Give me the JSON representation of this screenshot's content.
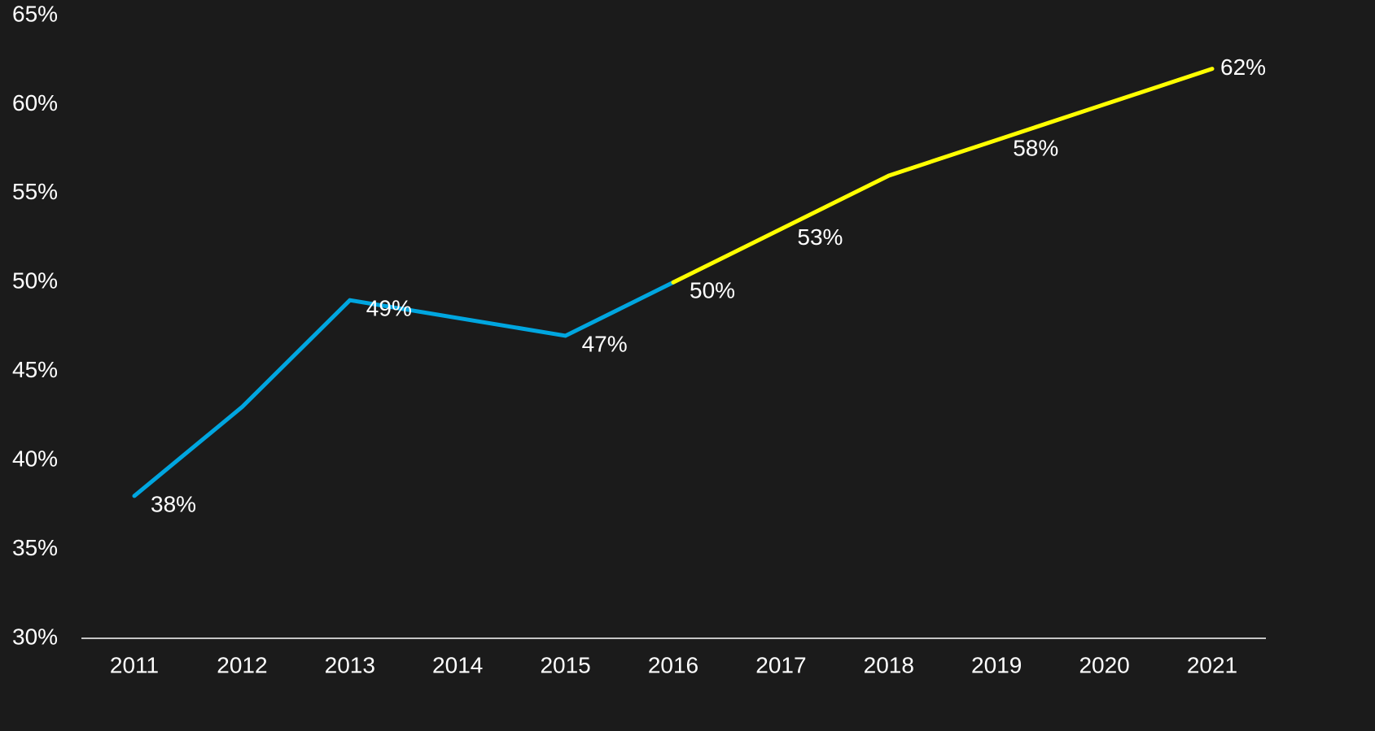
{
  "chart_data": {
    "type": "line",
    "categories": [
      "2011",
      "2012",
      "2013",
      "2014",
      "2015",
      "2016",
      "2017",
      "2018",
      "2019",
      "2020",
      "2021"
    ],
    "series": [
      {
        "color": "#00a6e0",
        "values": [
          38,
          43,
          49,
          48,
          47,
          50,
          null,
          null,
          null,
          null,
          null
        ],
        "value_labels": [
          "38%",
          null,
          "49%",
          null,
          "47%",
          null,
          null,
          null,
          null,
          null,
          null
        ]
      },
      {
        "color": "#ffff00",
        "values": [
          null,
          null,
          null,
          null,
          null,
          50,
          53,
          56,
          58,
          60,
          62
        ],
        "value_labels": [
          null,
          null,
          null,
          null,
          null,
          "50%",
          "53%",
          null,
          "58%",
          null,
          "62%"
        ]
      }
    ],
    "ylim": [
      30,
      65
    ],
    "yticks": [
      {
        "value": 30,
        "label": "30%"
      },
      {
        "value": 35,
        "label": "35%"
      },
      {
        "value": 40,
        "label": "40%"
      },
      {
        "value": 45,
        "label": "45%"
      },
      {
        "value": 50,
        "label": "50%"
      },
      {
        "value": 55,
        "label": "55%"
      },
      {
        "value": 60,
        "label": "60%"
      },
      {
        "value": 65,
        "label": "65%"
      }
    ],
    "grid": false
  }
}
